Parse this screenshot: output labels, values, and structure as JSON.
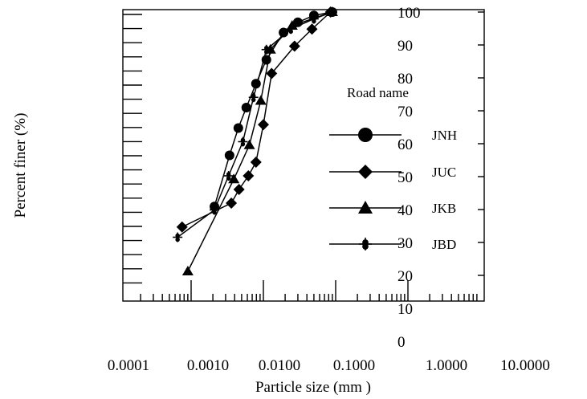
{
  "chart_data": {
    "type": "line",
    "xlabel": "Particle size (mm )",
    "ylabel": "Percent finer (%)",
    "xscale": "log",
    "xlim": [
      0.0001,
      10
    ],
    "x_tick_labels": [
      "0.0001",
      "0.0010",
      "0.0100",
      "0.1000",
      "1.0000",
      "10.0000"
    ],
    "y_tick_labels": [
      "0",
      "10",
      "20",
      "30",
      "40",
      "50",
      "60",
      "70",
      "80",
      "90",
      "100"
    ],
    "legend_title": "Road name",
    "legend_position": "right",
    "grid": false,
    "series": [
      {
        "name": "JNH",
        "marker": "circle",
        "points": [
          {
            "x": 0.0021,
            "y": 43
          },
          {
            "x": 0.0034,
            "y": 58
          },
          {
            "x": 0.0045,
            "y": 66
          },
          {
            "x": 0.0058,
            "y": 72
          },
          {
            "x": 0.0079,
            "y": 79
          },
          {
            "x": 0.011,
            "y": 86
          },
          {
            "x": 0.019,
            "y": 94
          },
          {
            "x": 0.03,
            "y": 97
          },
          {
            "x": 0.05,
            "y": 99
          },
          {
            "x": 0.09,
            "y": 100
          }
        ]
      },
      {
        "name": "JUC",
        "marker": "diamond",
        "points": [
          {
            "x": 0.00075,
            "y": 37
          },
          {
            "x": 0.0036,
            "y": 44
          },
          {
            "x": 0.0046,
            "y": 48
          },
          {
            "x": 0.0062,
            "y": 52
          },
          {
            "x": 0.0079,
            "y": 56
          },
          {
            "x": 0.01,
            "y": 67
          },
          {
            "x": 0.013,
            "y": 82
          },
          {
            "x": 0.027,
            "y": 90
          },
          {
            "x": 0.047,
            "y": 95
          },
          {
            "x": 0.085,
            "y": 100
          }
        ]
      },
      {
        "name": "JKB",
        "marker": "triangle",
        "points": [
          {
            "x": 0.0009,
            "y": 24
          },
          {
            "x": 0.0039,
            "y": 51
          },
          {
            "x": 0.0064,
            "y": 61
          },
          {
            "x": 0.0092,
            "y": 74
          },
          {
            "x": 0.0125,
            "y": 89
          },
          {
            "x": 0.025,
            "y": 96
          },
          {
            "x": 0.09,
            "y": 100
          }
        ]
      },
      {
        "name": "JBD",
        "marker": "circle-cross",
        "points": [
          {
            "x": 0.00065,
            "y": 34
          },
          {
            "x": 0.0021,
            "y": 42
          },
          {
            "x": 0.0033,
            "y": 52
          },
          {
            "x": 0.0052,
            "y": 62
          },
          {
            "x": 0.0073,
            "y": 75
          },
          {
            "x": 0.011,
            "y": 89
          },
          {
            "x": 0.024,
            "y": 95
          },
          {
            "x": 0.05,
            "y": 98
          },
          {
            "x": 0.09,
            "y": 100
          }
        ]
      }
    ]
  }
}
